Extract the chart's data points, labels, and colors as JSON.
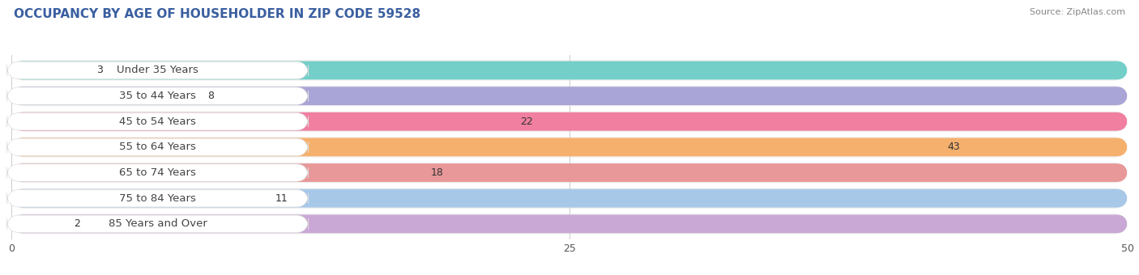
{
  "title": "OCCUPANCY BY AGE OF HOUSEHOLDER IN ZIP CODE 59528",
  "source": "Source: ZipAtlas.com",
  "categories": [
    "Under 35 Years",
    "35 to 44 Years",
    "45 to 54 Years",
    "55 to 64 Years",
    "65 to 74 Years",
    "75 to 84 Years",
    "85 Years and Over"
  ],
  "values": [
    3,
    8,
    22,
    43,
    18,
    11,
    2
  ],
  "bar_colors": [
    "#74cfc9",
    "#a9a5d6",
    "#f07fa0",
    "#f5b06e",
    "#e89898",
    "#a8c8e8",
    "#c9a8d6"
  ],
  "xlim": [
    0,
    50
  ],
  "xticks": [
    0,
    25,
    50
  ],
  "title_fontsize": 11,
  "label_fontsize": 9.5,
  "value_fontsize": 9,
  "background_color": "#ffffff",
  "bar_height": 0.72,
  "row_bg_color": "#eeeeee",
  "label_pill_color": "#ffffff",
  "label_text_color": "#444444",
  "title_color": "#3a5fa0",
  "source_color": "#888888"
}
